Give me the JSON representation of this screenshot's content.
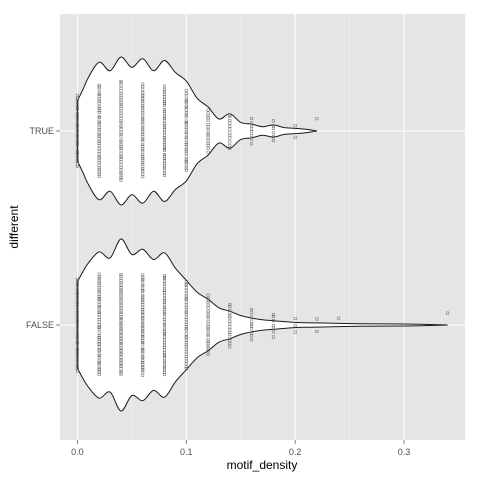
{
  "chart_data": {
    "type": "violin",
    "title": "",
    "xlabel": "motif_density",
    "ylabel": "different",
    "xlim": [
      -0.016,
      0.356
    ],
    "x_ticks": [
      "0.0",
      "0.1",
      "0.2",
      "0.3"
    ],
    "x_tick_values": [
      0,
      0.1,
      0.2,
      0.3
    ],
    "categories": [
      "TRUE",
      "FALSE"
    ],
    "grid": true,
    "panel_background": "#e5e5e5",
    "grid_color": "#ffffff",
    "outline_color": "#1a1a1a",
    "point_color": "#555555",
    "series": [
      {
        "category": "TRUE",
        "range": [
          0,
          0.22
        ],
        "density_profile": [
          [
            0.0,
            0.35
          ],
          [
            0.005,
            0.48
          ],
          [
            0.01,
            0.62
          ],
          [
            0.02,
            0.8
          ],
          [
            0.03,
            0.7
          ],
          [
            0.04,
            0.86
          ],
          [
            0.05,
            0.74
          ],
          [
            0.06,
            0.84
          ],
          [
            0.07,
            0.7
          ],
          [
            0.08,
            0.82
          ],
          [
            0.09,
            0.68
          ],
          [
            0.1,
            0.58
          ],
          [
            0.11,
            0.38
          ],
          [
            0.12,
            0.28
          ],
          [
            0.13,
            0.14
          ],
          [
            0.14,
            0.2
          ],
          [
            0.15,
            0.1
          ],
          [
            0.16,
            0.08
          ],
          [
            0.17,
            0.05
          ],
          [
            0.18,
            0.07
          ],
          [
            0.19,
            0.04
          ],
          [
            0.2,
            0.03
          ],
          [
            0.21,
            0.02
          ],
          [
            0.22,
            0.0
          ]
        ],
        "points": [
          {
            "x": 0.0,
            "n": 30
          },
          {
            "x": 0.02,
            "n": 40
          },
          {
            "x": 0.04,
            "n": 44
          },
          {
            "x": 0.06,
            "n": 40
          },
          {
            "x": 0.08,
            "n": 38
          },
          {
            "x": 0.1,
            "n": 34
          },
          {
            "x": 0.12,
            "n": 16
          },
          {
            "x": 0.14,
            "n": 12
          },
          {
            "x": 0.16,
            "n": 8
          },
          {
            "x": 0.18,
            "n": 6
          },
          {
            "x": 0.2,
            "n": 2
          },
          {
            "x": 0.22,
            "n": 1
          }
        ]
      },
      {
        "category": "FALSE",
        "range": [
          0,
          0.34
        ],
        "density_profile": [
          [
            0.0,
            0.5
          ],
          [
            0.005,
            0.62
          ],
          [
            0.01,
            0.72
          ],
          [
            0.02,
            0.85
          ],
          [
            0.03,
            0.78
          ],
          [
            0.04,
            1.0
          ],
          [
            0.05,
            0.82
          ],
          [
            0.06,
            0.88
          ],
          [
            0.07,
            0.76
          ],
          [
            0.08,
            0.84
          ],
          [
            0.09,
            0.66
          ],
          [
            0.1,
            0.52
          ],
          [
            0.11,
            0.38
          ],
          [
            0.12,
            0.3
          ],
          [
            0.13,
            0.2
          ],
          [
            0.14,
            0.16
          ],
          [
            0.15,
            0.11
          ],
          [
            0.16,
            0.08
          ],
          [
            0.17,
            0.06
          ],
          [
            0.18,
            0.05
          ],
          [
            0.2,
            0.03
          ],
          [
            0.22,
            0.025
          ],
          [
            0.26,
            0.015
          ],
          [
            0.3,
            0.012
          ],
          [
            0.34,
            0.0
          ]
        ],
        "points": [
          {
            "x": 0.0,
            "n": 40
          },
          {
            "x": 0.02,
            "n": 48
          },
          {
            "x": 0.04,
            "n": 52
          },
          {
            "x": 0.06,
            "n": 48
          },
          {
            "x": 0.08,
            "n": 44
          },
          {
            "x": 0.1,
            "n": 38
          },
          {
            "x": 0.12,
            "n": 24
          },
          {
            "x": 0.14,
            "n": 16
          },
          {
            "x": 0.16,
            "n": 10
          },
          {
            "x": 0.18,
            "n": 7
          },
          {
            "x": 0.2,
            "n": 3
          },
          {
            "x": 0.22,
            "n": 2
          },
          {
            "x": 0.24,
            "n": 1
          },
          {
            "x": 0.34,
            "n": 1
          }
        ]
      }
    ]
  }
}
